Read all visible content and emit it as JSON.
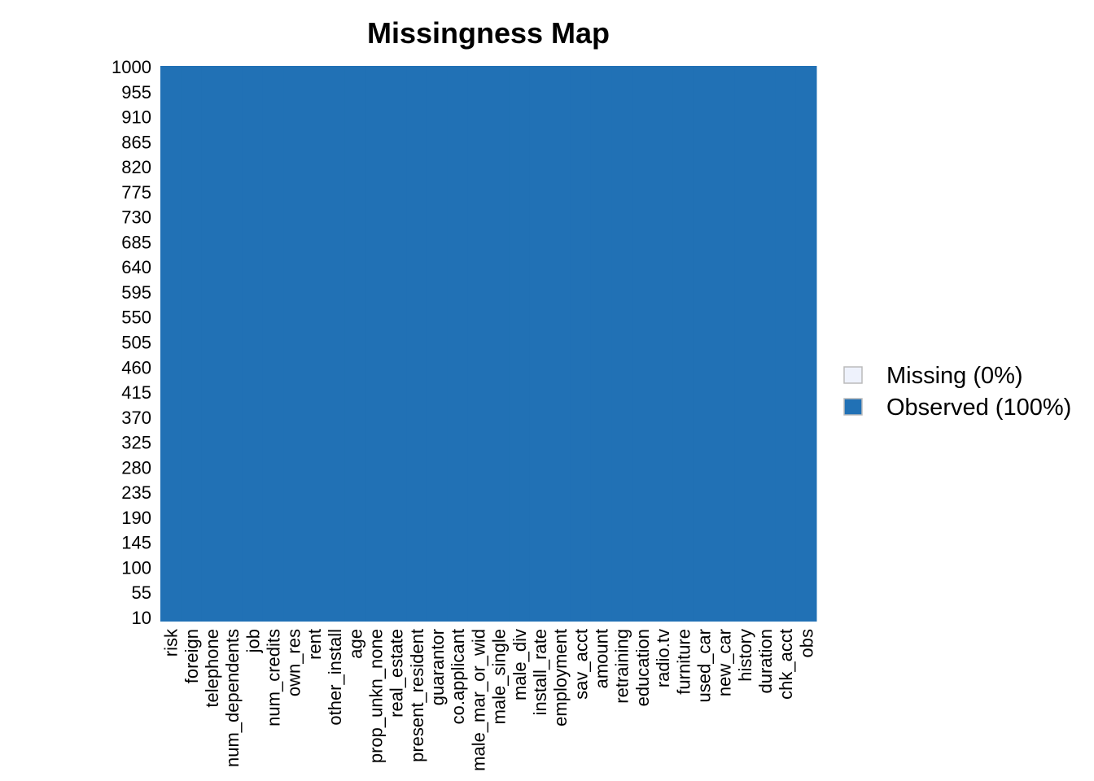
{
  "chart_data": {
    "type": "heatmap",
    "title": "Missingness Map",
    "xlabel": "",
    "ylabel": "",
    "columns": [
      "risk",
      "foreign",
      "telephone",
      "num_dependents",
      "job",
      "num_credits",
      "own_res",
      "rent",
      "other_install",
      "age",
      "prop_unkn_none",
      "real_estate",
      "present_resident",
      "guarantor",
      "co.applicant",
      "male_mar_or_wid",
      "male_single",
      "male_div",
      "install_rate",
      "employment",
      "sav_acct",
      "amount",
      "retraining",
      "education",
      "radio.tv",
      "furniture",
      "used_car",
      "new_car",
      "history",
      "duration",
      "chk_acct",
      "obs"
    ],
    "y_ticks": [
      1000,
      955,
      910,
      865,
      820,
      775,
      730,
      685,
      640,
      595,
      550,
      505,
      460,
      415,
      370,
      325,
      280,
      235,
      190,
      145,
      100,
      55,
      10
    ],
    "ylim": [
      1,
      1000
    ],
    "missing_fraction": 0,
    "grid": false,
    "legend_position": "right",
    "legend": [
      {
        "label": "Missing (0%)",
        "color": "#EEF2FC"
      },
      {
        "label": "Observed (100%)",
        "color": "#2171B5"
      }
    ]
  }
}
